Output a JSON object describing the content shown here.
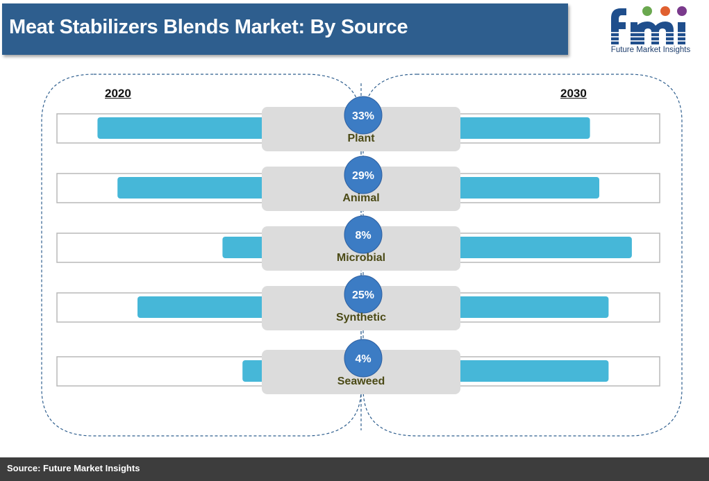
{
  "title": "Meat Stabilizers Blends Market: By Source",
  "logo": {
    "name": "fmi",
    "tagline": "Future Market Insights"
  },
  "source": "Source: Future Market Insights",
  "colors": {
    "title_bg": "#2e5e8e",
    "bar": "#46b7d8",
    "circle": "#3c7cc4",
    "label_text": "#4b4a16",
    "footer_bg": "#3d3d3d"
  },
  "chart_data": {
    "type": "bar",
    "layout": "diverging-butterfly",
    "left_year": "2020",
    "right_year": "2030",
    "categories": [
      "Plant",
      "Animal",
      "Microbial",
      "Synthetic",
      "Seaweed"
    ],
    "share_labels": [
      "33%",
      "29%",
      "8%",
      "25%",
      "4%"
    ],
    "series": [
      {
        "name": "2020",
        "values": [
          33,
          29,
          8,
          25,
          4
        ]
      },
      {
        "name": "2030",
        "values": [
          28,
          30,
          37,
          32,
          32
        ]
      }
    ],
    "value_scale_max": 40
  }
}
